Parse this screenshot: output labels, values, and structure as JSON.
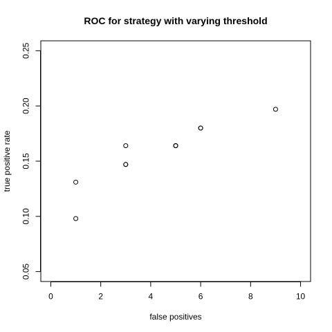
{
  "chart_data": {
    "type": "scatter",
    "title": "ROC for strategy with varying threshold",
    "xlabel": "false positives",
    "ylabel": "true positive rate",
    "xlim": [
      -0.4,
      10.4
    ],
    "ylim": [
      0.041,
      0.259
    ],
    "xticks": [
      0,
      2,
      4,
      6,
      8,
      10
    ],
    "yticks": [
      0.05,
      0.1,
      0.15,
      0.2,
      0.25
    ],
    "xtick_labels": [
      "0",
      "2",
      "4",
      "6",
      "8",
      "10"
    ],
    "ytick_labels": [
      "0.05",
      "0.10",
      "0.15",
      "0.20",
      "0.25"
    ],
    "points": [
      {
        "x": 1,
        "y": 0.131
      },
      {
        "x": 1,
        "y": 0.098
      },
      {
        "x": 3,
        "y": 0.164
      },
      {
        "x": 3,
        "y": 0.147
      },
      {
        "x": 3,
        "y": 0.147
      },
      {
        "x": 5,
        "y": 0.164
      },
      {
        "x": 5,
        "y": 0.164
      },
      {
        "x": 5,
        "y": 0.164
      },
      {
        "x": 6,
        "y": 0.18
      },
      {
        "x": 6,
        "y": 0.18
      },
      {
        "x": 9,
        "y": 0.197
      }
    ],
    "grid": false,
    "marker": "open-circle",
    "point_color": "#000000"
  }
}
